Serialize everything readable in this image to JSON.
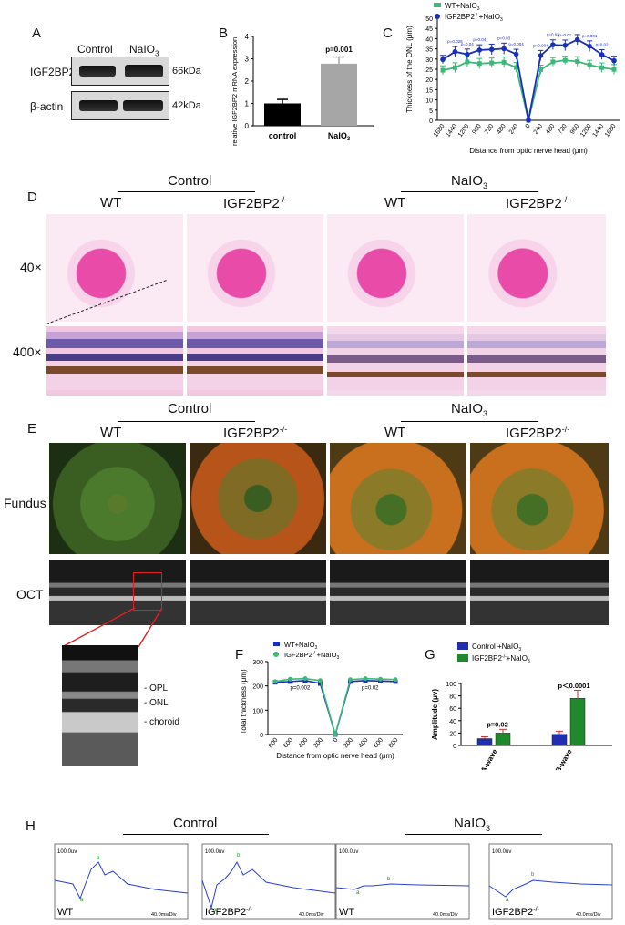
{
  "panels": {
    "A": {
      "letter": "A",
      "col_control": "Control",
      "col_naio3": "NaIO",
      "col_naio3_sub": "3",
      "row1": "IGF2BP2",
      "row1_size": "66kDa",
      "row2": "β-actin",
      "row2_size": "42kDa"
    },
    "B": {
      "letter": "B",
      "ylabel": "relative IGF2BP2 mRNA expression",
      "pvalue": "p=0.001"
    },
    "C": {
      "letter": "C",
      "legend1": "WT+NaIO",
      "legend1_sub": "3",
      "legend2": "IGF2BP2",
      "legend2_sup": "-/-",
      "legend2_suffix": "+NaIO",
      "legend2_sub": "3",
      "ylabel": "Thickness of the ONL (μm)",
      "xlabel": "Distance from optic nerve head (μm)"
    },
    "D": {
      "letter": "D",
      "group_control": "Control",
      "group_naio3": "NaIO",
      "group_naio3_sub": "3",
      "col_wt1": "WT",
      "col_ko1": "IGF2BP2",
      "col_ko_sup": "-/-",
      "col_wt2": "WT",
      "col_ko2": "IGF2BP2",
      "row_40": "40×",
      "row_400": "400×"
    },
    "E": {
      "letter": "E",
      "group_control": "Control",
      "group_naio3": "NaIO",
      "group_naio3_sub": "3",
      "col_wt1": "WT",
      "col_ko1": "IGF2BP2",
      "col_ko_sup": "-/-",
      "col_wt2": "WT",
      "col_ko2": "IGF2BP2",
      "row_fundus": "Fundus",
      "row_oct": "OCT",
      "zoom_opl": "OPL",
      "zoom_onl": "ONL",
      "zoom_choroid": "choroid"
    },
    "F": {
      "letter": "F",
      "legend1": "WT+NaIO",
      "legend1_sub": "3",
      "legend2": "IGF2BP2",
      "legend2_sup": "-/-",
      "legend2_suffix": "+NaIO",
      "legend2_sub": "3",
      "ylabel": "Total thickness (μm)",
      "xlabel": "Distance from optic nerve head (μm)",
      "p_left": "p=0.002",
      "p_right": "p=0.02"
    },
    "G": {
      "letter": "G",
      "legend1": "Control +NaIO",
      "legend1_sub": "3",
      "legend2": "IGF2BP2",
      "legend2_sup": "-/-",
      "legend2_suffix": "+NaIO",
      "legend2_sub": "3",
      "ylabel": "Amplitude (μv)",
      "p_a": "p=0.02",
      "p_b": "p＜0.0001"
    },
    "H": {
      "letter": "H",
      "group_control": "Control",
      "group_naio3": "NaIO",
      "group_naio3_sub": "3",
      "scale": "100.0uv",
      "time": "40.0ms/Div",
      "lbl_wt": "WT",
      "lbl_ko": "IGF2BP2",
      "lbl_ko_sup": "-/-",
      "peak_a": "a",
      "peak_b": "b"
    }
  },
  "chart_data": [
    {
      "id": "B",
      "type": "bar",
      "categories": [
        "control",
        "NaIO3"
      ],
      "values": [
        1.0,
        2.78
      ],
      "errors": [
        0.18,
        0.3
      ],
      "ylim": [
        0,
        4
      ],
      "yticks": [
        0,
        1,
        2,
        3,
        4
      ],
      "colors": [
        "#000000",
        "#a6a6a6"
      ],
      "ylabel": "relative IGF2BP2 mRNA expression"
    },
    {
      "id": "C",
      "type": "line",
      "x_labels": [
        "1680",
        "1440",
        "1200",
        "960",
        "720",
        "480",
        "240",
        "0",
        "240",
        "480",
        "720",
        "960",
        "1200",
        "1440",
        "1680"
      ],
      "ylim": [
        0,
        50
      ],
      "yticks": [
        0,
        5,
        10,
        15,
        20,
        25,
        30,
        35,
        40,
        45,
        50
      ],
      "series": [
        {
          "name": "WT+NaIO3",
          "color": "#3cb878",
          "values": [
            24.5,
            25.8,
            28.6,
            27.8,
            28.1,
            28.4,
            25.9,
            0,
            24.8,
            28.6,
            29.4,
            28.8,
            27.1,
            25.8,
            24.9
          ],
          "errors": [
            2.2,
            2.4,
            2.4,
            2.5,
            2.4,
            2.6,
            2.4,
            0,
            2.2,
            2.1,
            2.0,
            2.4,
            2.3,
            2.3,
            2.4
          ]
        },
        {
          "name": "IGF2BP2-/-+NaIO3",
          "color": "#1a2fb8",
          "values": [
            29.8,
            33.6,
            32.3,
            34.4,
            34.7,
            35.1,
            32.4,
            0,
            31.7,
            37.0,
            36.7,
            39.5,
            36.3,
            32.2,
            29.2
          ],
          "errors": [
            2.0,
            2.5,
            2.6,
            2.6,
            2.6,
            2.7,
            2.4,
            0,
            2.5,
            2.4,
            2.6,
            2.5,
            2.6,
            2.4,
            2.2
          ]
        }
      ],
      "annotations": [
        "p=0.026",
        "p=0.04",
        "p=0.04",
        "p=0.03",
        "p=0.004",
        "p=0.004",
        "p=0.03",
        "p=0.01",
        "p=0.001",
        "p=0.02"
      ]
    },
    {
      "id": "F",
      "type": "line",
      "x_labels": [
        "800",
        "600",
        "400",
        "200",
        "0",
        "200",
        "400",
        "600",
        "800"
      ],
      "ylim": [
        0,
        300
      ],
      "yticks": [
        0,
        100,
        200,
        300
      ],
      "series": [
        {
          "name": "WT+NaIO3",
          "color": "#1a2fb8",
          "values": [
            215,
            218,
            222,
            210,
            0,
            218,
            222,
            220,
            218
          ]
        },
        {
          "name": "IGF2BP2-/-+NaIO3",
          "color": "#3cb878",
          "values": [
            218,
            228,
            230,
            222,
            0,
            226,
            230,
            228,
            226
          ]
        }
      ]
    },
    {
      "id": "G",
      "type": "bar",
      "categories": [
        "A-wave",
        "B-wave"
      ],
      "ylim": [
        0,
        100
      ],
      "yticks": [
        0,
        20,
        40,
        60,
        80,
        100
      ],
      "series": [
        {
          "name": "Control +NaIO3",
          "color": "#1f2fb0",
          "values": [
            11,
            18
          ],
          "errors": [
            3,
            5
          ]
        },
        {
          "name": "IGF2BP2-/-+NaIO3",
          "color": "#1f8a2c",
          "values": [
            20,
            76
          ],
          "errors": [
            6,
            13
          ]
        }
      ]
    }
  ]
}
